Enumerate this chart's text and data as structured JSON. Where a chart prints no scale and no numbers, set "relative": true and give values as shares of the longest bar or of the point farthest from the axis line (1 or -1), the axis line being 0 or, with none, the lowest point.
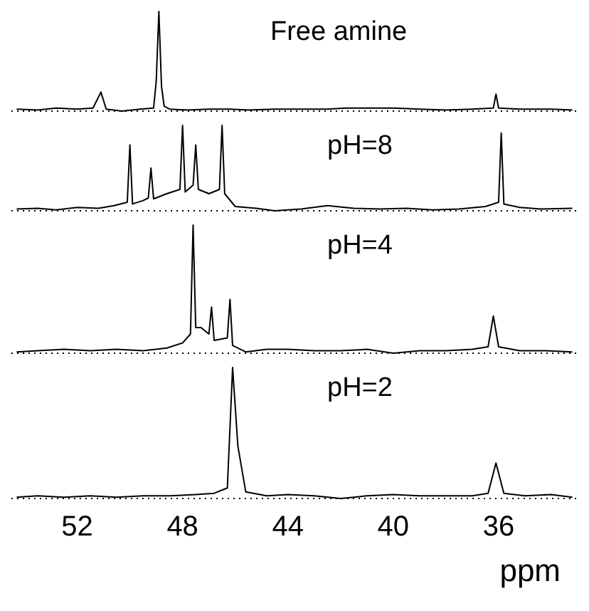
{
  "chart_data": [
    {
      "type": "line",
      "relative": true,
      "xlim": [
        54.5,
        33
      ],
      "xticks": [
        52,
        48,
        44,
        40,
        36
      ],
      "tick_labels": false,
      "annotations": [
        "Free amine"
      ],
      "series": [
        {
          "color": "#000000",
          "x": [
            54.3,
            53.5,
            52.8,
            52.0,
            51.4,
            51.1,
            50.9,
            50.3,
            49.6,
            49.1,
            49.0,
            48.9,
            48.8,
            48.7,
            48.5,
            47.8,
            47.0,
            46.2,
            45.5,
            44.5,
            43.5,
            42.5,
            41.8,
            41.0,
            40.0,
            39.0,
            38.0,
            37.0,
            36.2,
            36.1,
            36.0,
            35.2,
            34.0,
            33.2
          ],
          "values": [
            0.02,
            0.01,
            0.03,
            0.02,
            0.03,
            0.19,
            0.02,
            0,
            0.02,
            0.03,
            0.3,
            1,
            0.25,
            0.05,
            0.02,
            0.01,
            0.02,
            0.02,
            0.01,
            0.02,
            0.02,
            0.02,
            0.03,
            0.03,
            0.03,
            0.02,
            0.01,
            0.02,
            0.03,
            0.17,
            0.03,
            0.02,
            0.02,
            0.01
          ]
        }
      ]
    },
    {
      "type": "line",
      "relative": true,
      "xlim": [
        54.5,
        33
      ],
      "xticks": [
        52,
        48,
        44,
        40,
        36
      ],
      "tick_labels": false,
      "annotations": [
        "pH=8"
      ],
      "series": [
        {
          "color": "#000000",
          "x": [
            54.3,
            53.5,
            52.8,
            52.0,
            51.2,
            50.6,
            50.1,
            50.0,
            49.9,
            49.5,
            49.3,
            49.2,
            49.1,
            48.6,
            48.1,
            48.0,
            47.9,
            47.6,
            47.5,
            47.4,
            47.0,
            46.6,
            46.5,
            46.4,
            46.0,
            45.2,
            44.5,
            43.5,
            42.5,
            41.5,
            40.5,
            39.5,
            38.5,
            37.5,
            36.5,
            36.0,
            35.9,
            35.8,
            35.2,
            34.4,
            33.2
          ],
          "values": [
            0.02,
            0.03,
            0.01,
            0.04,
            0.03,
            0.06,
            0.1,
            0.77,
            0.08,
            0.12,
            0.15,
            0.5,
            0.14,
            0.2,
            0.25,
            1,
            0.22,
            0.3,
            0.77,
            0.25,
            0.2,
            0.25,
            1,
            0.2,
            0.05,
            0.03,
            0,
            0.02,
            0.06,
            0.03,
            0.02,
            0.03,
            0.01,
            0.02,
            0.05,
            0.1,
            0.91,
            0.08,
            0.04,
            0.02,
            0.03
          ]
        }
      ]
    },
    {
      "type": "line",
      "relative": true,
      "xlim": [
        54.5,
        33
      ],
      "xticks": [
        52,
        48,
        44,
        40,
        36
      ],
      "tick_labels": false,
      "annotations": [
        "pH=4"
      ],
      "series": [
        {
          "color": "#000000",
          "x": [
            54.3,
            53.5,
            52.5,
            51.5,
            50.5,
            49.5,
            48.6,
            48.0,
            47.7,
            47.6,
            47.5,
            47.3,
            47.0,
            46.9,
            46.8,
            46.3,
            46.2,
            46.1,
            45.6,
            44.8,
            44.0,
            43.0,
            42.0,
            41.0,
            40.0,
            39.0,
            38.0,
            37.0,
            36.4,
            36.2,
            36.0,
            35.2,
            34.2,
            33.2
          ],
          "values": [
            0.01,
            0.02,
            0.03,
            0.02,
            0.03,
            0.02,
            0.04,
            0.08,
            0.15,
            1,
            0.2,
            0.2,
            0.15,
            0.36,
            0.1,
            0.12,
            0.42,
            0.06,
            0.01,
            0.03,
            0.03,
            0.02,
            0.02,
            0.03,
            0,
            0.02,
            0.02,
            0.03,
            0.05,
            0.29,
            0.05,
            0.02,
            0.02,
            0.01
          ]
        }
      ]
    },
    {
      "type": "line",
      "relative": true,
      "xlim": [
        54.5,
        33
      ],
      "xticks": [
        52,
        48,
        44,
        40,
        36
      ],
      "xlabel": "ppm",
      "tick_labels": "x",
      "annotations": [
        "pH=2"
      ],
      "series": [
        {
          "color": "#000000",
          "x": [
            54.3,
            53.5,
            52.5,
            51.5,
            50.5,
            49.5,
            48.5,
            47.5,
            46.8,
            46.3,
            46.1,
            45.9,
            45.6,
            44.8,
            44.0,
            43.0,
            42.0,
            41.0,
            40.0,
            39.0,
            38.0,
            37.0,
            36.4,
            36.1,
            35.8,
            35.0,
            34.0,
            33.2
          ],
          "values": [
            0.01,
            0.02,
            0.01,
            0.02,
            0.01,
            0.02,
            0.02,
            0.03,
            0.04,
            0.08,
            1,
            0.4,
            0.05,
            0.02,
            0.03,
            0.02,
            0,
            0.02,
            0.03,
            0.02,
            0.02,
            0.02,
            0.04,
            0.27,
            0.04,
            0.02,
            0.03,
            0.01
          ]
        }
      ]
    }
  ]
}
